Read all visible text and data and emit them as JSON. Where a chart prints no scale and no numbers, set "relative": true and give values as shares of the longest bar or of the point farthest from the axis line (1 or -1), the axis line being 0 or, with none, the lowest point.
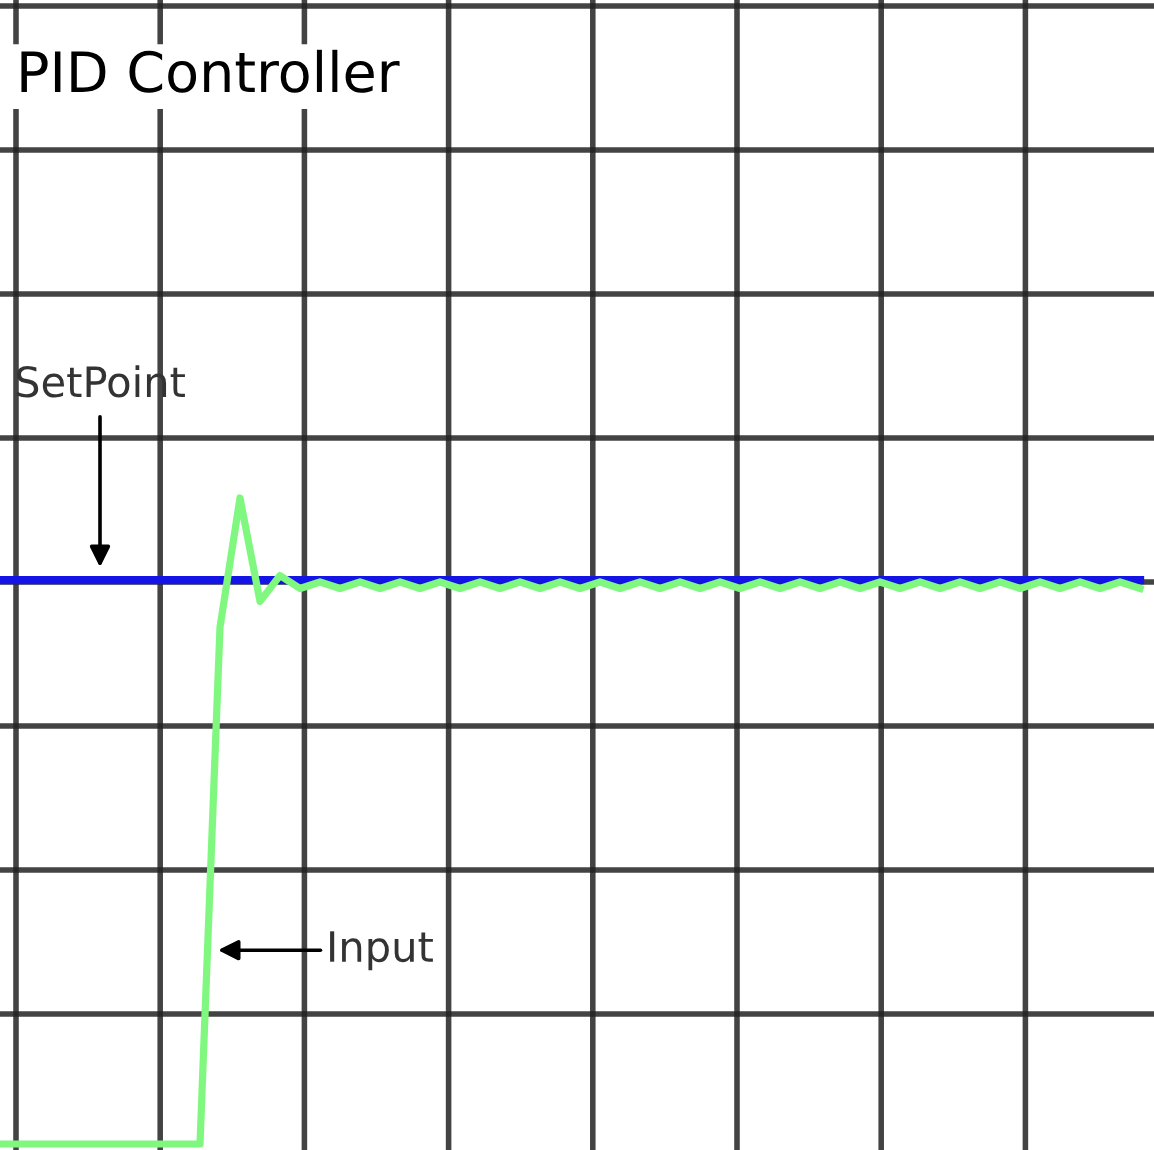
{
  "chart_data": {
    "type": "line",
    "title": "PID Controller",
    "relative": true,
    "grid": true,
    "tick_labels": false,
    "categories": [
      null,
      null,
      null,
      null,
      null,
      null,
      null,
      null,
      null,
      null,
      null,
      null,
      null,
      null,
      null,
      null,
      null,
      null,
      null,
      null,
      null,
      null,
      null,
      null,
      null,
      null,
      null,
      null,
      null,
      null,
      null,
      null,
      null,
      null,
      null,
      null,
      null,
      null,
      null,
      null,
      null,
      null,
      null,
      null,
      null,
      null,
      null,
      null,
      null,
      null,
      null,
      null,
      null,
      null,
      null,
      null,
      null,
      null
    ],
    "series": [
      {
        "name": "SetPoint",
        "color": "#1414e6",
        "values": [
          0.873,
          0.873,
          0.873,
          0.873,
          0.873,
          0.873,
          0.873,
          0.873,
          0.873,
          0.873,
          0.873,
          0.873,
          0.873,
          0.873,
          0.873,
          0.873,
          0.873,
          0.873,
          0.873,
          0.873,
          0.873,
          0.873,
          0.873,
          0.873,
          0.873,
          0.873,
          0.873,
          0.873,
          0.873,
          0.873,
          0.873,
          0.873,
          0.873,
          0.873,
          0.873,
          0.873,
          0.873,
          0.873,
          0.873,
          0.873,
          0.873,
          0.873,
          0.873,
          0.873,
          0.873,
          0.873,
          0.873,
          0.873,
          0.873,
          0.873,
          0.873,
          0.873,
          0.873,
          0.873,
          0.873,
          0.873,
          0.873,
          0.873
        ]
      },
      {
        "name": "Input",
        "color": "#80f880",
        "values": [
          0,
          0,
          0,
          0,
          0,
          0,
          0,
          0,
          0,
          0,
          0,
          0.8,
          1.0,
          0.84,
          0.88,
          0.86,
          0.87,
          0.86,
          0.87,
          0.86,
          0.87,
          0.86,
          0.87,
          0.86,
          0.87,
          0.86,
          0.87,
          0.86,
          0.87,
          0.86,
          0.87,
          0.86,
          0.87,
          0.86,
          0.87,
          0.86,
          0.87,
          0.86,
          0.87,
          0.86,
          0.87,
          0.86,
          0.87,
          0.86,
          0.87,
          0.86,
          0.87,
          0.86,
          0.87,
          0.86,
          0.87,
          0.86,
          0.87,
          0.86,
          0.87,
          0.86,
          0.87,
          0.86
        ]
      }
    ]
  }
}
